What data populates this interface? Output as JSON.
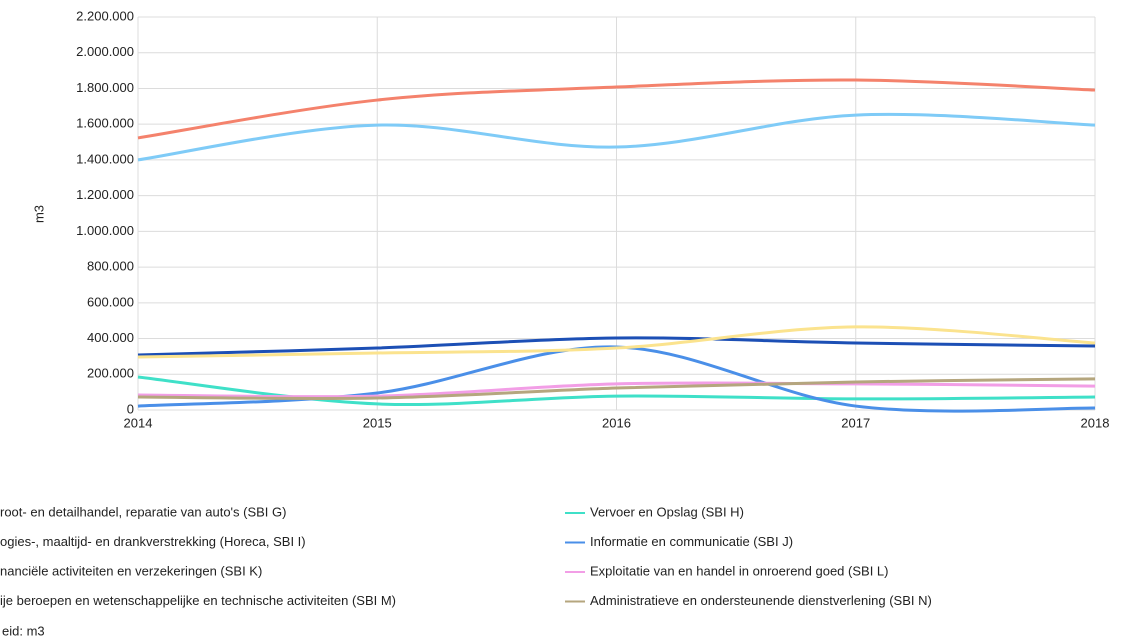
{
  "chart_data": {
    "type": "line",
    "y_label": "m3",
    "x": [
      2014,
      2015,
      2016,
      2017,
      2018
    ],
    "xlim": [
      2014,
      2018
    ],
    "xticks": [
      2014,
      2015,
      2016,
      2017,
      2018
    ],
    "ylim": [
      0,
      2200000
    ],
    "yticks": [
      0,
      {
        "value": 200000,
        "label": "200.000"
      },
      {
        "value": 400000,
        "label": "400.000"
      },
      {
        "value": 600000,
        "label": "600.000"
      },
      {
        "value": 800000,
        "label": "800.000"
      },
      {
        "value": 1000000,
        "label": "1.000.000"
      },
      {
        "value": 1200000,
        "label": "1.200.000"
      },
      {
        "value": 1400000,
        "label": "1.400.000"
      },
      {
        "value": 1600000,
        "label": "1.600.000"
      },
      {
        "value": 1800000,
        "label": "1.800.000"
      },
      {
        "value": 2000000,
        "label": "2.000.000"
      },
      {
        "value": 2200000,
        "label": "2.200.000"
      }
    ],
    "grid": true,
    "series": [
      {
        "name": "root- en detailhandel, reparatie van auto's (SBI G)",
        "color": "#f4826c",
        "values": [
          1523000,
          1735000,
          1808000,
          1847000,
          1791000
        ]
      },
      {
        "name": "Vervoer en Opslag (SBI H)",
        "color": "#3fe0c8",
        "values": [
          185000,
          34000,
          78000,
          62000,
          73000
        ]
      },
      {
        "name": "ogies-, maaltijd- en drankverstrekking (Horeca, SBI I)",
        "color": "#7fcbf7",
        "values": [
          1400000,
          1595000,
          1472000,
          1651000,
          1595000
        ]
      },
      {
        "name": "Informatie en communicatie (SBI J)",
        "color": "#4a8fe8",
        "values": [
          22000,
          95000,
          353000,
          22000,
          11000
        ]
      },
      {
        "name": "nanciële activiteiten en verzekeringen (SBI K)",
        "color": "#1c4fb5",
        "values": [
          308000,
          347000,
          403000,
          375000,
          358000
        ]
      },
      {
        "name": "Exploitatie van en handel in onroerend goed (SBI L)",
        "color": "#f29ee6",
        "values": [
          84000,
          78000,
          146000,
          146000,
          134000
        ]
      },
      {
        "name": "ije beroepen en wetenschappelijke en technische activiteiten (SBI M)",
        "color": "#fbe38e",
        "values": [
          297000,
          319000,
          347000,
          465000,
          375000
        ]
      },
      {
        "name": "Administratieve en ondersteunende dienstverlening (SBI N)",
        "color": "#b5a67e",
        "values": [
          73000,
          67000,
          123000,
          157000,
          174000
        ]
      }
    ],
    "note": "eid: m3"
  }
}
